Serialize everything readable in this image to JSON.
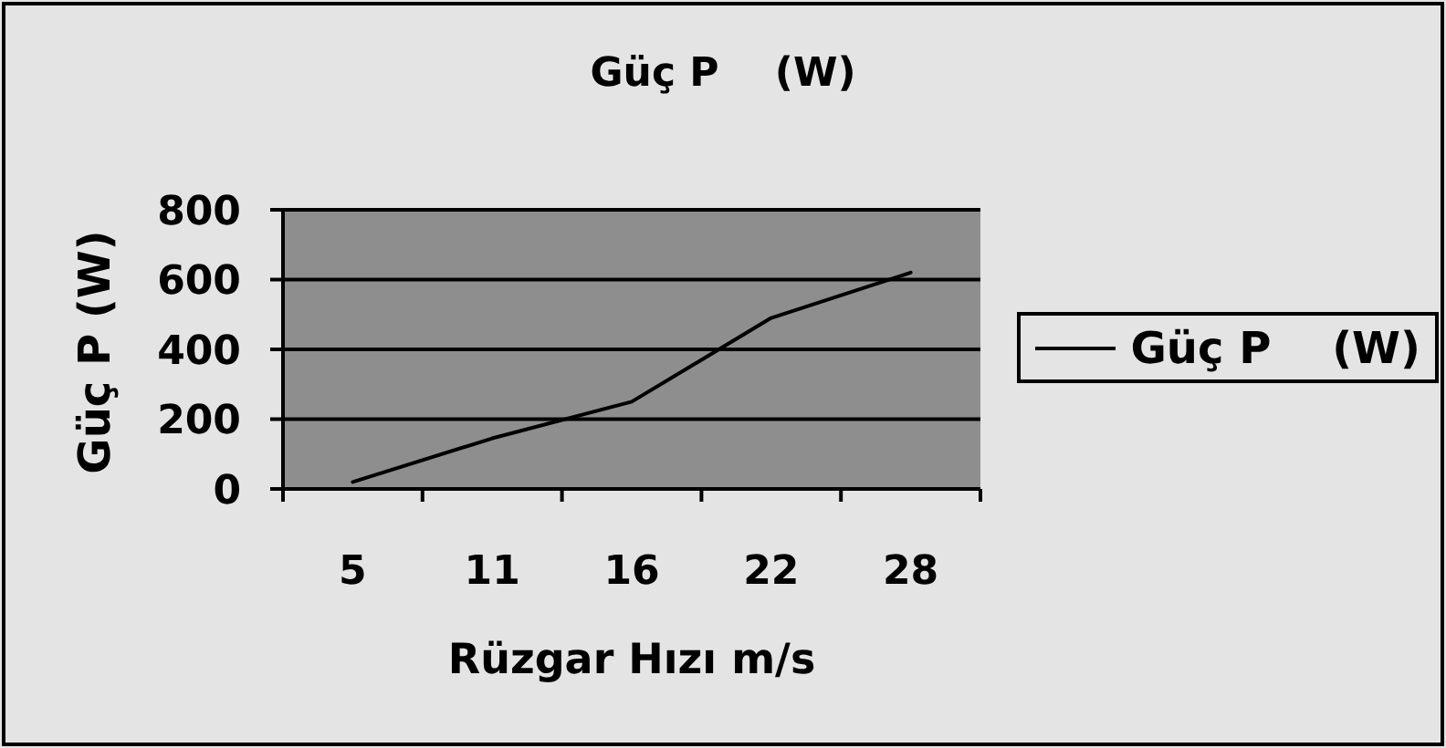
{
  "chart_data": {
    "type": "line",
    "title": "Güç P    (W)",
    "xlabel": "Rüzgar Hızı m/s",
    "ylabel": "Güç P (W)",
    "categories": [
      "5",
      "11",
      "16",
      "22",
      "28"
    ],
    "series": [
      {
        "name": "Güç P    (W)",
        "color": "#000000",
        "values": [
          20,
          145,
          250,
          490,
          620
        ]
      }
    ],
    "ylim": [
      0,
      800
    ],
    "yticks": [
      0,
      200,
      400,
      600,
      800
    ],
    "grid": "y",
    "legend": "right",
    "marker": "none",
    "line_style": "solid"
  }
}
